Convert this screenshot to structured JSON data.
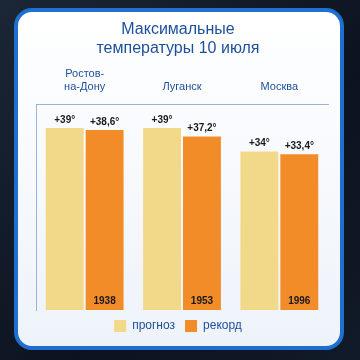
{
  "chart_data": {
    "type": "bar",
    "title": "Максимальные температуры 10 июля",
    "categories": [
      "Ростов-на-Дону",
      "Луганск",
      "Москва"
    ],
    "series": [
      {
        "name": "прогноз",
        "color": "#f2d98a",
        "values": [
          39,
          39,
          34
        ],
        "value_labels": [
          "+39°",
          "+39°",
          "+34°"
        ]
      },
      {
        "name": "рекорд",
        "color": "#f28c28",
        "values": [
          38.6,
          37.2,
          33.4
        ],
        "value_labels": [
          "+38,6°",
          "+37,2°",
          "+33,4°"
        ],
        "years": [
          1938,
          1953,
          1996
        ]
      }
    ],
    "ylim": [
      0,
      44
    ],
    "grid": false,
    "legend": "bottom",
    "data_labels": true,
    "tick_labels": "x"
  }
}
